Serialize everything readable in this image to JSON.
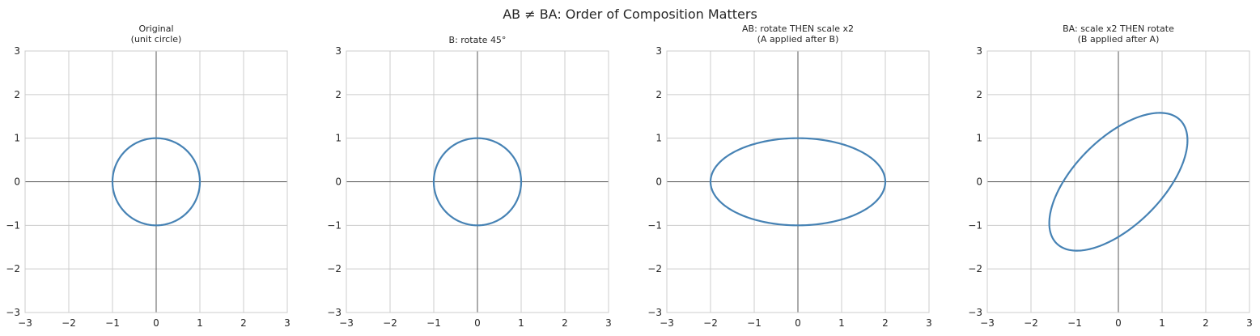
{
  "figure": {
    "title": "AB ≠ BA: Order of Composition Matters"
  },
  "style": {
    "curve_color": "#4682b4"
  },
  "chart_data": [
    {
      "type": "line",
      "title_lines": [
        "Original",
        "(unit circle)"
      ],
      "xlim": [
        -3,
        3
      ],
      "ylim": [
        -3,
        3
      ],
      "xticks": [
        "−3",
        "−2",
        "−1",
        "0",
        "1",
        "2",
        "3"
      ],
      "yticks": [
        "−3",
        "−2",
        "−1",
        "0",
        "1",
        "2",
        "3"
      ],
      "grid": true,
      "ellipse": {
        "sx": 1,
        "sy": 1,
        "rotation_deg": 0
      }
    },
    {
      "type": "line",
      "title_lines": [
        "B: rotate 45°"
      ],
      "xlim": [
        -3,
        3
      ],
      "ylim": [
        -3,
        3
      ],
      "xticks": [
        "−3",
        "−2",
        "−1",
        "0",
        "1",
        "2",
        "3"
      ],
      "yticks": [
        "−3",
        "−2",
        "−1",
        "0",
        "1",
        "2",
        "3"
      ],
      "grid": true,
      "ellipse": {
        "sx": 1,
        "sy": 1,
        "rotation_deg": 45
      }
    },
    {
      "type": "line",
      "title_lines": [
        "AB: rotate THEN scale x2",
        "(A applied after B)"
      ],
      "xlim": [
        -3,
        3
      ],
      "ylim": [
        -3,
        3
      ],
      "xticks": [
        "−3",
        "−2",
        "−1",
        "0",
        "1",
        "2",
        "3"
      ],
      "yticks": [
        "−3",
        "−2",
        "−1",
        "0",
        "1",
        "2",
        "3"
      ],
      "grid": true,
      "ellipse": {
        "sx": 2,
        "sy": 1,
        "rotation_deg": 0
      }
    },
    {
      "type": "line",
      "title_lines": [
        "BA: scale x2 THEN rotate",
        "(B applied after A)"
      ],
      "xlim": [
        -3,
        3
      ],
      "ylim": [
        -3,
        3
      ],
      "xticks": [
        "−3",
        "−2",
        "−1",
        "0",
        "1",
        "2",
        "3"
      ],
      "yticks": [
        "−3",
        "−2",
        "−1",
        "0",
        "1",
        "2",
        "3"
      ],
      "grid": true,
      "ellipse": {
        "sx": 2,
        "sy": 1,
        "rotation_deg": 45
      }
    }
  ]
}
